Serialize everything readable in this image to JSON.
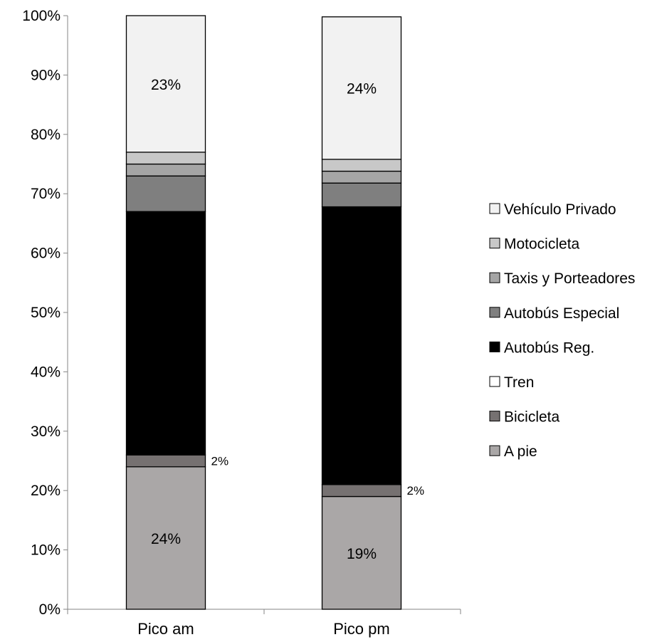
{
  "chart_data": {
    "type": "bar",
    "stacked": true,
    "categories": [
      "Pico am",
      "Pico pm"
    ],
    "series": [
      {
        "name": "A pie",
        "color": "#aaa7a7",
        "values": [
          24,
          19
        ]
      },
      {
        "name": "Bicicleta",
        "color": "#767171",
        "values": [
          2,
          2
        ]
      },
      {
        "name": "Tren",
        "color": "#ffffff",
        "values": [
          0,
          0
        ]
      },
      {
        "name": "Autobús Reg.",
        "color": "#000000",
        "values": [
          41,
          46.8
        ]
      },
      {
        "name": "Autobús Especial",
        "color": "#7f7f7f",
        "values": [
          6,
          4
        ]
      },
      {
        "name": "Taxis y Porteadores",
        "color": "#a5a5a5",
        "values": [
          2,
          2
        ]
      },
      {
        "name": "Motocicleta",
        "color": "#c8c8c8",
        "values": [
          2,
          2
        ]
      },
      {
        "name": "Vehículo Privado",
        "color": "#f2f2f2",
        "values": [
          23,
          24
        ]
      }
    ],
    "data_labels": [
      {
        "category": "Pico am",
        "series": "A pie",
        "text": "24%"
      },
      {
        "category": "Pico am",
        "series": "Bicicleta",
        "text": "2%"
      },
      {
        "category": "Pico am",
        "series": "Vehículo Privado",
        "text": "23%"
      },
      {
        "category": "Pico pm",
        "series": "A pie",
        "text": "19%"
      },
      {
        "category": "Pico pm",
        "series": "Bicicleta",
        "text": "2%"
      },
      {
        "category": "Pico pm",
        "series": "Vehículo Privado",
        "text": "24%"
      }
    ],
    "yticks": [
      "0%",
      "10%",
      "20%",
      "30%",
      "40%",
      "50%",
      "60%",
      "70%",
      "80%",
      "90%",
      "100%"
    ],
    "ylim": [
      0,
      100
    ],
    "grid": false,
    "legend": {
      "position": "right",
      "order": [
        "Vehículo Privado",
        "Motocicleta",
        "Taxis y Porteadores",
        "Autobús Especial",
        "Autobús Reg.",
        "Tren",
        "Bicicleta",
        "A pie"
      ]
    },
    "title": "",
    "xlabel": "",
    "ylabel": ""
  }
}
